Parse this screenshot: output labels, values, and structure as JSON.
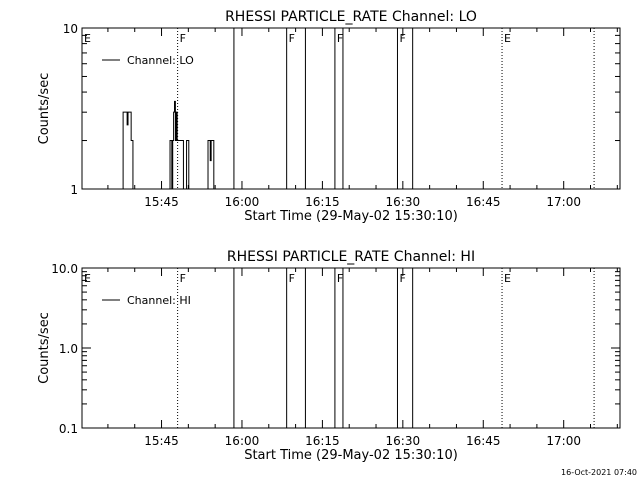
{
  "footer": {
    "timestamp": "16-Oct-2021 07:40"
  },
  "chart_data": [
    {
      "type": "line",
      "title": "RHESSI PARTICLE_RATE Channel: LO",
      "xlabel": "Start Time (29-May-02 15:30:10)",
      "ylabel": "Counts/sec",
      "yscale": "log",
      "ylim": [
        1,
        10
      ],
      "xlim": [
        "15:30:10",
        "17:10:30"
      ],
      "x_ticks": [
        "15:45",
        "16:00",
        "16:15",
        "16:30",
        "16:45",
        "17:00"
      ],
      "y_ticks": [
        "1",
        "10"
      ],
      "legend": {
        "position": "top-left",
        "entries": [
          "Channel: LO"
        ]
      },
      "series": [
        {
          "name": "Channel: LO",
          "color": "#000000",
          "x": [
            "15:37:40",
            "15:37:50",
            "15:38:20",
            "15:38:35",
            "15:38:45",
            "15:38:55",
            "15:39:20",
            "15:39:40",
            "15:46:30",
            "15:46:35",
            "15:46:45",
            "15:46:55",
            "15:47:05",
            "15:47:15",
            "15:47:25",
            "15:47:35",
            "15:47:45",
            "15:47:55",
            "15:48:05",
            "15:48:45",
            "15:49:05",
            "15:49:35",
            "15:49:40",
            "15:49:55",
            "15:50:05",
            "15:53:35",
            "15:53:40",
            "15:54:05",
            "15:54:15",
            "15:54:40",
            "15:54:45"
          ],
          "y": [
            1,
            3,
            3,
            2.5,
            3,
            3,
            2,
            1,
            1,
            2,
            2,
            1,
            2,
            3,
            3.5,
            2,
            3,
            2,
            2,
            2,
            1,
            1,
            2,
            2,
            1,
            1,
            2,
            1.5,
            2,
            2,
            1
          ]
        }
      ],
      "annotations": [
        {
          "time": "15:30:10",
          "label": "E",
          "style": "dotted"
        },
        {
          "time": "15:48:00",
          "label": "F",
          "style": "dotted"
        },
        {
          "time": "15:58:30",
          "label": "",
          "style": "solid"
        },
        {
          "time": "16:08:20",
          "label": "F",
          "style": "solid"
        },
        {
          "time": "16:11:50",
          "label": "",
          "style": "solid"
        },
        {
          "time": "16:17:20",
          "label": "F",
          "style": "solid"
        },
        {
          "time": "16:18:50",
          "label": "",
          "style": "solid"
        },
        {
          "time": "16:29:00",
          "label": "F",
          "style": "solid"
        },
        {
          "time": "16:31:50",
          "label": "",
          "style": "solid"
        },
        {
          "time": "16:48:30",
          "label": "E",
          "style": "dotted"
        },
        {
          "time": "17:05:40",
          "label": "",
          "style": "dotted"
        }
      ]
    },
    {
      "type": "line",
      "title": "RHESSI PARTICLE_RATE Channel: HI",
      "xlabel": "Start Time (29-May-02 15:30:10)",
      "ylabel": "Counts/sec",
      "yscale": "log",
      "ylim": [
        0.1,
        10
      ],
      "xlim": [
        "15:30:10",
        "17:10:30"
      ],
      "x_ticks": [
        "15:45",
        "16:00",
        "16:15",
        "16:30",
        "16:45",
        "17:00"
      ],
      "y_ticks": [
        "10.0",
        "1.0",
        "0.1"
      ],
      "legend": {
        "position": "top-left",
        "entries": [
          "Channel: HI"
        ]
      },
      "series": [
        {
          "name": "Channel: HI",
          "color": "#000000",
          "x": [],
          "y": []
        }
      ],
      "annotations": [
        {
          "time": "15:30:10",
          "label": "E",
          "style": "dotted"
        },
        {
          "time": "15:48:00",
          "label": "F",
          "style": "dotted"
        },
        {
          "time": "15:58:30",
          "label": "",
          "style": "solid"
        },
        {
          "time": "16:08:20",
          "label": "F",
          "style": "solid"
        },
        {
          "time": "16:11:50",
          "label": "",
          "style": "solid"
        },
        {
          "time": "16:17:20",
          "label": "F",
          "style": "solid"
        },
        {
          "time": "16:18:50",
          "label": "",
          "style": "solid"
        },
        {
          "time": "16:29:00",
          "label": "F",
          "style": "solid"
        },
        {
          "time": "16:31:50",
          "label": "",
          "style": "solid"
        },
        {
          "time": "16:48:30",
          "label": "E",
          "style": "dotted"
        },
        {
          "time": "17:05:40",
          "label": "",
          "style": "dotted"
        }
      ]
    }
  ]
}
